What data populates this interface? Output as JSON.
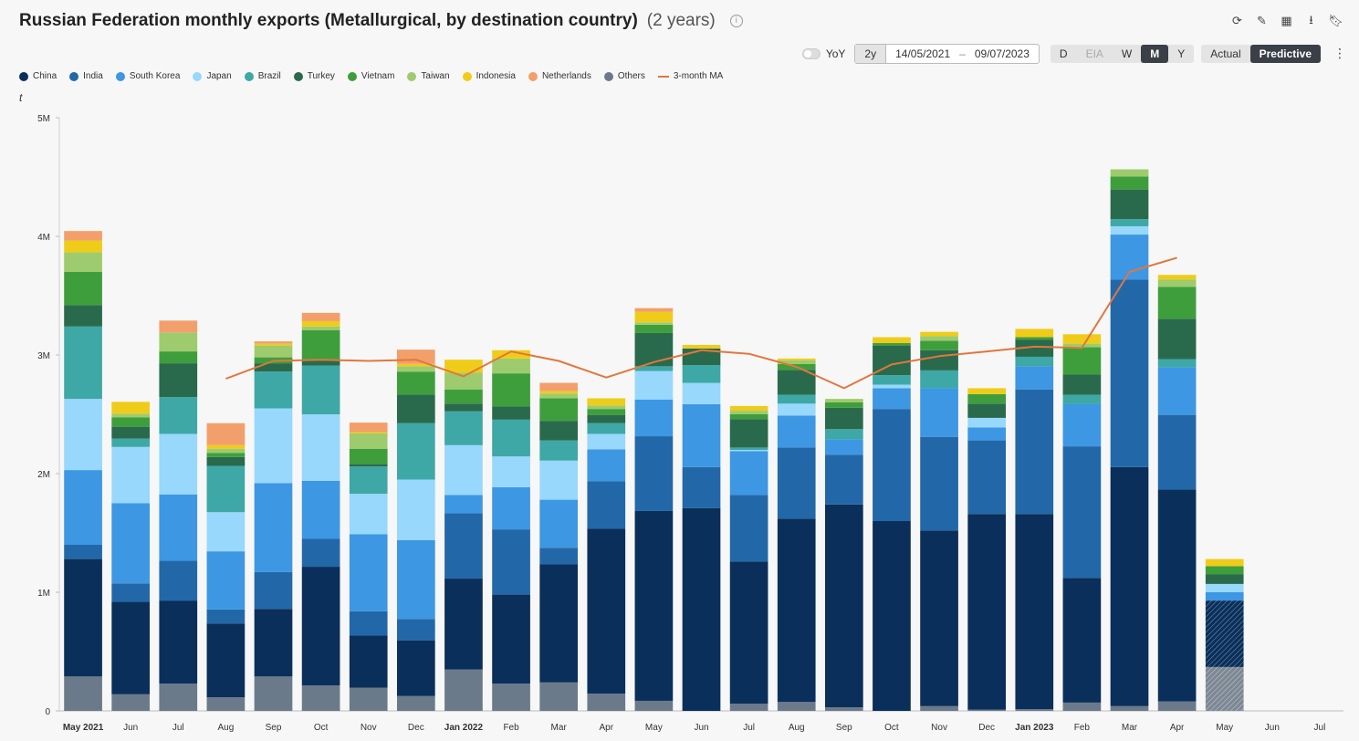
{
  "header": {
    "title": "Russian Federation monthly exports (Metallurgical, by destination country)",
    "subtitle": "(2 years)",
    "info_icon": "ⓘ"
  },
  "toolbar": {
    "yoy_label": "YoY",
    "preset": "2y",
    "start_date": "14/05/2021",
    "end_date": "09/07/2023",
    "date_sep": "–",
    "granularity": [
      "D",
      "EIA",
      "W",
      "M",
      "Y"
    ],
    "granularity_active": "M",
    "granularity_disabled": "EIA",
    "modes": [
      "Actual",
      "Predictive"
    ],
    "mode_active": "Predictive",
    "icons": [
      "refresh-icon",
      "chart-edit-icon",
      "dashboard-add-icon",
      "download-icon",
      "bookmark-icon",
      "kebab-menu-icon"
    ]
  },
  "unit_label": "t",
  "chart_data": {
    "type": "bar",
    "stacked": true,
    "ylim": [
      0,
      5000000
    ],
    "yticks": [
      "0",
      "1M",
      "2M",
      "3M",
      "4M",
      "5M"
    ],
    "categories": [
      "May 2021",
      "Jun",
      "Jul",
      "Aug",
      "Sep",
      "Oct",
      "Nov",
      "Dec",
      "Jan 2022",
      "Feb",
      "Mar",
      "Apr",
      "May",
      "Jun",
      "Jul",
      "Aug",
      "Sep",
      "Oct",
      "Nov",
      "Dec",
      "Jan 2023",
      "Feb",
      "Mar",
      "Apr",
      "May",
      "Jun",
      "Jul"
    ],
    "bold_categories": [
      "May 2021",
      "Jan 2022",
      "Jan 2023"
    ],
    "predictive_from_index": 24,
    "series": [
      {
        "name": "Others",
        "color": "#6b7a8b",
        "values": [
          290000,
          140000,
          230000,
          115000,
          290000,
          215000,
          195000,
          125000,
          350000,
          230000,
          240000,
          145000,
          85000,
          0,
          60000,
          75000,
          30000,
          0,
          40000,
          10000,
          15000,
          70000,
          40000,
          80000,
          370000,
          0,
          0
        ]
      },
      {
        "name": "China",
        "color": "#0a2f5a",
        "values": [
          990000,
          780000,
          700000,
          620000,
          570000,
          1000000,
          440000,
          470000,
          765000,
          750000,
          995000,
          1390000,
          1600000,
          1710000,
          1200000,
          1545000,
          1710000,
          1600000,
          1480000,
          1650000,
          1645000,
          1050000,
          2015000,
          1785000,
          560000,
          0,
          0
        ]
      },
      {
        "name": "India",
        "color": "#2268a8",
        "values": [
          120000,
          155000,
          335000,
          120000,
          310000,
          235000,
          205000,
          180000,
          550000,
          550000,
          140000,
          400000,
          630000,
          345000,
          560000,
          600000,
          420000,
          945000,
          790000,
          620000,
          1050000,
          1110000,
          1580000,
          630000,
          0,
          0,
          0
        ]
      },
      {
        "name": "South Korea",
        "color": "#3d97e3",
        "values": [
          630000,
          675000,
          560000,
          490000,
          750000,
          490000,
          650000,
          665000,
          155000,
          355000,
          405000,
          270000,
          310000,
          530000,
          370000,
          270000,
          130000,
          175000,
          410000,
          110000,
          195000,
          355000,
          380000,
          400000,
          70000,
          0,
          0
        ]
      },
      {
        "name": "Japan",
        "color": "#97d8fc",
        "values": [
          600000,
          475000,
          510000,
          330000,
          630000,
          560000,
          340000,
          510000,
          420000,
          260000,
          330000,
          130000,
          240000,
          180000,
          10000,
          100000,
          0,
          30000,
          0,
          80000,
          0,
          0,
          70000,
          0,
          70000,
          0,
          0
        ]
      },
      {
        "name": "Brazil",
        "color": "#3ea8a6",
        "values": [
          610000,
          70000,
          310000,
          390000,
          310000,
          410000,
          230000,
          475000,
          285000,
          310000,
          170000,
          90000,
          40000,
          150000,
          20000,
          75000,
          85000,
          80000,
          150000,
          0,
          80000,
          80000,
          60000,
          70000,
          0,
          0,
          0
        ]
      },
      {
        "name": "Turkey",
        "color": "#2a6a4c",
        "values": [
          180000,
          100000,
          285000,
          75000,
          70000,
          50000,
          20000,
          240000,
          65000,
          110000,
          165000,
          70000,
          280000,
          140000,
          240000,
          210000,
          180000,
          250000,
          170000,
          120000,
          145000,
          170000,
          250000,
          340000,
          80000,
          0,
          0
        ]
      },
      {
        "name": "Vietnam",
        "color": "#3f9e3c",
        "values": [
          280000,
          80000,
          100000,
          35000,
          50000,
          250000,
          130000,
          195000,
          120000,
          280000,
          190000,
          50000,
          70000,
          0,
          40000,
          50000,
          45000,
          20000,
          80000,
          80000,
          20000,
          230000,
          110000,
          270000,
          70000,
          0,
          0
        ]
      },
      {
        "name": "Taiwan",
        "color": "#9ecb6d",
        "values": [
          165000,
          30000,
          160000,
          35000,
          100000,
          30000,
          130000,
          45000,
          140000,
          125000,
          40000,
          30000,
          20000,
          0,
          30000,
          30000,
          30000,
          0,
          40000,
          0,
          0,
          30000,
          60000,
          60000,
          0,
          0,
          0
        ]
      },
      {
        "name": "Indonesia",
        "color": "#efcc1a",
        "values": [
          100000,
          100000,
          0,
          30000,
          15000,
          45000,
          10000,
          20000,
          110000,
          70000,
          20000,
          60000,
          90000,
          30000,
          40000,
          15000,
          0,
          50000,
          35000,
          50000,
          70000,
          80000,
          0,
          40000,
          60000,
          0,
          0
        ]
      },
      {
        "name": "Netherlands",
        "color": "#f39f6c",
        "values": [
          80000,
          0,
          100000,
          185000,
          20000,
          70000,
          80000,
          120000,
          0,
          0,
          70000,
          0,
          30000,
          0,
          0,
          0,
          0,
          0,
          0,
          0,
          0,
          0,
          0,
          0,
          0,
          0,
          0
        ]
      }
    ],
    "moving_average": {
      "name": "3-month MA",
      "color": "#e2773c",
      "values": [
        null,
        null,
        null,
        2800000,
        2950000,
        2960000,
        2950000,
        2960000,
        2820000,
        3030000,
        2950000,
        2810000,
        2940000,
        3040000,
        3010000,
        2900000,
        2720000,
        2920000,
        2990000,
        3030000,
        3070000,
        3060000,
        3700000,
        3820000,
        null,
        null,
        null
      ]
    },
    "legend_order": [
      "China",
      "India",
      "South Korea",
      "Japan",
      "Brazil",
      "Turkey",
      "Vietnam",
      "Taiwan",
      "Indonesia",
      "Netherlands",
      "Others",
      "3-month MA"
    ]
  }
}
